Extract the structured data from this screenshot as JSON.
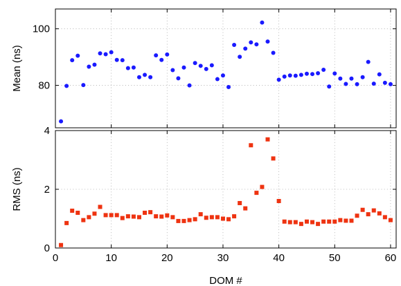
{
  "chart_data": [
    {
      "type": "scatter",
      "title": "",
      "xlabel": "DOM #",
      "ylabel": "Mean (ns)",
      "xlim": [
        0,
        61
      ],
      "ylim": [
        65,
        107
      ],
      "xticks": [
        0,
        10,
        20,
        30,
        40,
        50,
        60
      ],
      "xticklabels": [
        "0",
        "10",
        "20",
        "30",
        "40",
        "50",
        "60"
      ],
      "show_xticklabels": false,
      "yticks": [
        80,
        100
      ],
      "yticklabels": [
        "80",
        "100"
      ],
      "grid": true,
      "marker": "circle",
      "color": "#1a1aff",
      "series": [
        {
          "name": "",
          "x": [
            1,
            2,
            3,
            4,
            5,
            6,
            7,
            8,
            9,
            10,
            11,
            12,
            13,
            14,
            15,
            16,
            17,
            18,
            19,
            20,
            21,
            22,
            23,
            24,
            25,
            26,
            27,
            28,
            29,
            30,
            31,
            32,
            33,
            34,
            35,
            36,
            37,
            38,
            39,
            40,
            41,
            42,
            43,
            44,
            45,
            46,
            47,
            48,
            49,
            50,
            51,
            52,
            53,
            54,
            55,
            56,
            57,
            58,
            59,
            60
          ],
          "y": [
            67.3,
            79.8,
            88.9,
            90.5,
            80.1,
            86.6,
            87.3,
            91.3,
            91.0,
            91.7,
            89.0,
            88.9,
            86.1,
            86.3,
            82.9,
            83.7,
            82.9,
            90.6,
            89.0,
            90.9,
            85.4,
            82.5,
            86.3,
            80.0,
            87.9,
            86.9,
            85.8,
            87.1,
            82.2,
            83.5,
            79.4,
            94.3,
            90.1,
            93.0,
            95.2,
            94.5,
            102.2,
            95.5,
            91.5,
            82.0,
            83.1,
            83.5,
            83.4,
            83.7,
            84.1,
            84.0,
            84.3,
            85.5,
            79.6,
            84.2,
            82.4,
            80.5,
            82.4,
            80.4,
            82.9,
            88.3,
            80.6,
            83.9,
            80.9,
            80.4
          ]
        }
      ]
    },
    {
      "type": "scatter",
      "title": "",
      "xlabel": "DOM #",
      "ylabel": "RMS (ns)",
      "xlim": [
        0,
        61
      ],
      "ylim": [
        0,
        4
      ],
      "xticks": [
        0,
        10,
        20,
        30,
        40,
        50,
        60
      ],
      "xticklabels": [
        "0",
        "10",
        "20",
        "30",
        "40",
        "50",
        "60"
      ],
      "show_xticklabels": true,
      "yticks": [
        0,
        2,
        4
      ],
      "yticklabels": [
        "0",
        "2",
        "4"
      ],
      "grid": true,
      "marker": "square",
      "color": "#ee3311",
      "series": [
        {
          "name": "",
          "x": [
            1,
            2,
            3,
            4,
            5,
            6,
            7,
            8,
            9,
            10,
            11,
            12,
            13,
            14,
            15,
            16,
            17,
            18,
            19,
            20,
            21,
            22,
            23,
            24,
            25,
            26,
            27,
            28,
            29,
            30,
            31,
            32,
            33,
            34,
            35,
            36,
            37,
            38,
            39,
            40,
            41,
            42,
            43,
            44,
            45,
            46,
            47,
            48,
            49,
            50,
            51,
            52,
            53,
            54,
            55,
            56,
            57,
            58,
            59,
            60
          ],
          "y": [
            0.1,
            0.85,
            1.27,
            1.2,
            0.95,
            1.05,
            1.17,
            1.4,
            1.12,
            1.12,
            1.12,
            1.02,
            1.08,
            1.07,
            1.05,
            1.2,
            1.22,
            1.08,
            1.07,
            1.11,
            1.05,
            0.92,
            0.92,
            0.95,
            0.98,
            1.15,
            1.03,
            1.05,
            1.05,
            1.0,
            0.98,
            1.08,
            1.53,
            1.35,
            3.5,
            1.88,
            2.08,
            3.7,
            3.05,
            1.6,
            0.9,
            0.88,
            0.88,
            0.82,
            0.9,
            0.88,
            0.82,
            0.9,
            0.9,
            0.9,
            0.95,
            0.93,
            0.93,
            1.1,
            1.3,
            1.15,
            1.28,
            1.18,
            1.05,
            0.95
          ]
        }
      ]
    }
  ]
}
